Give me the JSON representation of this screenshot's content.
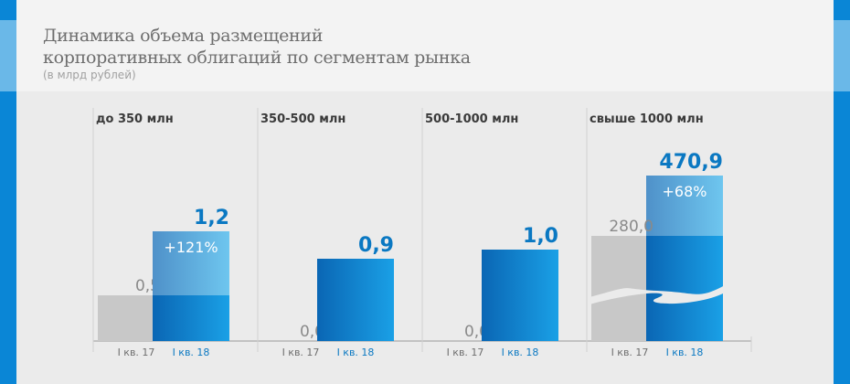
{
  "title_lines": [
    "Динамика объема размещений",
    "корпоративных облигаций по сегментам рынка"
  ],
  "subtitle": "(в млрд рублей)",
  "colors": {
    "accent": "#0a86d6",
    "accent_light": "#6ab8e8",
    "grey_bar": "#c8c8c8",
    "blue_dark": "#0a66b4",
    "blue_light": "#1aa0e6",
    "value_blue": "#0a78c2"
  },
  "chart_data": {
    "type": "bar",
    "subtitle": "(в млрд рублей)",
    "series": [
      {
        "name": "I кв. 17"
      },
      {
        "name": "I кв. 18"
      }
    ],
    "groups": [
      {
        "title": "до 350 млн",
        "prev": 0.5,
        "curr": 1.2,
        "prev_label": "0,5",
        "curr_label": "1,2",
        "growth": "+121%",
        "prev_cat": "I кв. 17",
        "curr_cat": "I кв. 18"
      },
      {
        "title": "350-500 млн",
        "prev": 0.0,
        "curr": 0.9,
        "prev_label": "0,0",
        "curr_label": "0,9",
        "growth": "",
        "prev_cat": "I кв. 17",
        "curr_cat": "I кв. 18"
      },
      {
        "title": "500-1000 млн",
        "prev": 0.0,
        "curr": 1.0,
        "prev_label": "0,0",
        "curr_label": "1,0",
        "growth": "",
        "prev_cat": "I кв. 17",
        "curr_cat": "I кв. 18"
      },
      {
        "title": "свыше 1000 млн",
        "prev": 280.0,
        "curr": 470.9,
        "prev_label": "280,0",
        "curr_label": "470,9",
        "growth": "+68%",
        "prev_cat": "I кв. 17",
        "curr_cat": "I кв. 18",
        "axis_break": true
      }
    ],
    "ylim": [
      0,
      1.5
    ],
    "grid": false,
    "legend": "none"
  }
}
